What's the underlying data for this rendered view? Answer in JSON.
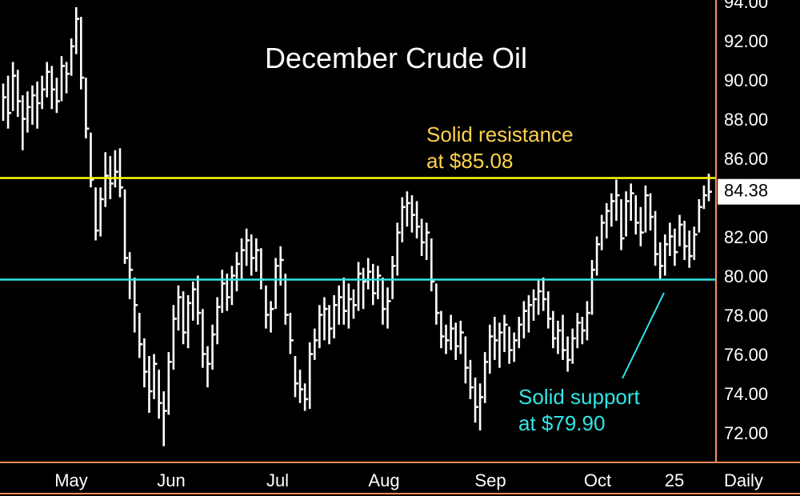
{
  "chart_data": {
    "type": "ohlc",
    "title": "December Crude Oil",
    "timeframe_label": "Daily",
    "y_ticks": [
      "94.00",
      "92.00",
      "90.00",
      "88.00",
      "86.00",
      "84.00",
      "82.00",
      "80.00",
      "78.00",
      "76.00",
      "74.00",
      "72.00"
    ],
    "x_ticks": [
      "May",
      "Jun",
      "Jul",
      "Aug",
      "Sep",
      "Oct",
      "25"
    ],
    "last_price_label": "84.38",
    "ylim": [
      71,
      94.2
    ],
    "grid": false,
    "colors": {
      "background": "#000000",
      "bars": "#ffffff",
      "resistance": "#ffff00",
      "support": "#33e6e6",
      "axis": "#ff8c5a",
      "title": "#ffffff",
      "resistance_text": "#ffd24a"
    },
    "lines": [
      {
        "name": "resistance",
        "value": 85.08,
        "label": [
          "Solid resistance",
          "at $85.08"
        ]
      },
      {
        "name": "support",
        "value": 79.9,
        "label": [
          "Solid support",
          "at $79.90"
        ]
      }
    ],
    "bars": [
      {
        "date": "Apr 24",
        "high": 89.9,
        "low": 88.0,
        "close": 89.2
      },
      {
        "date": "Apr 25",
        "high": 90.3,
        "low": 87.6,
        "close": 88.4
      },
      {
        "date": "Apr 26",
        "high": 91.0,
        "low": 88.5,
        "close": 90.3
      },
      {
        "date": "Apr 27",
        "high": 90.6,
        "low": 88.2,
        "close": 89.0
      },
      {
        "date": "Apr 30",
        "high": 89.3,
        "low": 86.5,
        "close": 88.1
      },
      {
        "date": "May 1",
        "high": 89.5,
        "low": 87.4,
        "close": 88.7
      },
      {
        "date": "May 2",
        "high": 89.8,
        "low": 87.8,
        "close": 89.3
      },
      {
        "date": "May 3",
        "high": 90.0,
        "low": 87.6,
        "close": 88.9
      },
      {
        "date": "May 4",
        "high": 90.3,
        "low": 88.6,
        "close": 89.6
      },
      {
        "date": "May 7",
        "high": 91.0,
        "low": 89.2,
        "close": 90.5
      },
      {
        "date": "May 8",
        "high": 90.8,
        "low": 88.6,
        "close": 89.6
      },
      {
        "date": "May 9",
        "high": 90.2,
        "low": 88.4,
        "close": 89.0
      },
      {
        "date": "May 10",
        "high": 91.3,
        "low": 89.0,
        "close": 90.8
      },
      {
        "date": "May 11",
        "high": 91.0,
        "low": 89.4,
        "close": 90.4
      },
      {
        "date": "May 14",
        "high": 92.2,
        "low": 90.3,
        "close": 91.8
      },
      {
        "date": "May 15",
        "high": 93.8,
        "low": 91.4,
        "close": 93.2
      },
      {
        "date": "May 16",
        "high": 93.3,
        "low": 89.6,
        "close": 90.2
      },
      {
        "date": "May 17",
        "high": 90.2,
        "low": 87.1,
        "close": 87.6
      },
      {
        "date": "May 18",
        "high": 87.4,
        "low": 84.6,
        "close": 85.0
      },
      {
        "date": "May 21",
        "high": 84.6,
        "low": 81.9,
        "close": 82.4
      },
      {
        "date": "May 22",
        "high": 84.6,
        "low": 82.1,
        "close": 84.0
      },
      {
        "date": "May 23",
        "high": 86.4,
        "low": 83.6,
        "close": 85.2
      },
      {
        "date": "May 24",
        "high": 86.2,
        "low": 84.0,
        "close": 84.8
      },
      {
        "date": "May 25",
        "high": 86.5,
        "low": 84.6,
        "close": 85.4
      },
      {
        "date": "May 29",
        "high": 86.6,
        "low": 84.1,
        "close": 84.6
      },
      {
        "date": "May 30",
        "high": 84.5,
        "low": 80.7,
        "close": 81.0
      },
      {
        "date": "May 31",
        "high": 81.3,
        "low": 78.9,
        "close": 80.4
      },
      {
        "date": "Jun 1",
        "high": 80.0,
        "low": 77.2,
        "close": 78.6
      },
      {
        "date": "Jun 4",
        "high": 78.2,
        "low": 75.9,
        "close": 76.6
      },
      {
        "date": "Jun 5",
        "high": 76.9,
        "low": 74.4,
        "close": 75.2
      },
      {
        "date": "Jun 6",
        "high": 76.0,
        "low": 73.1,
        "close": 74.2
      },
      {
        "date": "Jun 7",
        "high": 76.1,
        "low": 73.8,
        "close": 75.6
      },
      {
        "date": "Jun 8",
        "high": 75.3,
        "low": 72.8,
        "close": 73.6
      },
      {
        "date": "Jun 11",
        "high": 74.2,
        "low": 71.4,
        "close": 73.2
      },
      {
        "date": "Jun 12",
        "high": 76.2,
        "low": 73.0,
        "close": 75.7
      },
      {
        "date": "Jun 13",
        "high": 78.6,
        "low": 75.3,
        "close": 77.9
      },
      {
        "date": "Jun 14",
        "high": 79.6,
        "low": 77.3,
        "close": 79.0
      },
      {
        "date": "Jun 15",
        "high": 79.3,
        "low": 76.6,
        "close": 77.2
      },
      {
        "date": "Jun 18",
        "high": 79.1,
        "low": 76.4,
        "close": 78.7
      },
      {
        "date": "Jun 19",
        "high": 79.8,
        "low": 77.8,
        "close": 79.4
      },
      {
        "date": "Jun 20",
        "high": 80.1,
        "low": 77.6,
        "close": 78.2
      },
      {
        "date": "Jun 21",
        "high": 78.4,
        "low": 75.4,
        "close": 76.1
      },
      {
        "date": "Jun 22",
        "high": 76.5,
        "low": 74.4,
        "close": 75.6
      },
      {
        "date": "Jun 25",
        "high": 77.6,
        "low": 75.3,
        "close": 77.1
      },
      {
        "date": "Jun 26",
        "high": 79.0,
        "low": 76.6,
        "close": 78.5
      },
      {
        "date": "Jun 27",
        "high": 80.4,
        "low": 78.2,
        "close": 79.7
      },
      {
        "date": "Jun 28",
        "high": 80.2,
        "low": 78.3,
        "close": 79.0
      },
      {
        "date": "Jun 29",
        "high": 80.6,
        "low": 78.6,
        "close": 80.1
      },
      {
        "date": "Jul 2",
        "high": 81.3,
        "low": 79.3,
        "close": 80.7
      },
      {
        "date": "Jul 3",
        "high": 82.0,
        "low": 79.9,
        "close": 81.4
      },
      {
        "date": "Jul 5",
        "high": 82.5,
        "low": 80.6,
        "close": 81.9
      },
      {
        "date": "Jul 6",
        "high": 82.2,
        "low": 80.1,
        "close": 81.0
      },
      {
        "date": "Jul 9",
        "high": 82.0,
        "low": 80.3,
        "close": 81.4
      },
      {
        "date": "Jul 10",
        "high": 81.5,
        "low": 79.4,
        "close": 79.9
      },
      {
        "date": "Jul 11",
        "high": 79.6,
        "low": 77.4,
        "close": 78.1
      },
      {
        "date": "Jul 12",
        "high": 78.8,
        "low": 77.2,
        "close": 78.4
      },
      {
        "date": "Jul 13",
        "high": 81.0,
        "low": 78.4,
        "close": 80.6
      },
      {
        "date": "Jul 16",
        "high": 81.6,
        "low": 79.6,
        "close": 80.9
      },
      {
        "date": "Jul 17",
        "high": 80.2,
        "low": 77.6,
        "close": 78.1
      },
      {
        "date": "Jul 18",
        "high": 78.2,
        "low": 76.1,
        "close": 76.8
      },
      {
        "date": "Jul 19",
        "high": 76.0,
        "low": 73.9,
        "close": 74.6
      },
      {
        "date": "Jul 20",
        "high": 75.3,
        "low": 73.6,
        "close": 74.3
      },
      {
        "date": "Jul 23",
        "high": 74.6,
        "low": 73.2,
        "close": 73.8
      },
      {
        "date": "Jul 24",
        "high": 76.7,
        "low": 73.3,
        "close": 76.1
      },
      {
        "date": "Jul 25",
        "high": 77.4,
        "low": 75.8,
        "close": 76.8
      },
      {
        "date": "Jul 26",
        "high": 78.6,
        "low": 76.4,
        "close": 78.1
      },
      {
        "date": "Jul 27",
        "high": 79.0,
        "low": 76.8,
        "close": 78.4
      },
      {
        "date": "Jul 30",
        "high": 78.6,
        "low": 76.6,
        "close": 77.4
      },
      {
        "date": "Jul 31",
        "high": 79.1,
        "low": 76.9,
        "close": 78.6
      },
      {
        "date": "Aug 1",
        "high": 79.6,
        "low": 77.6,
        "close": 79.0
      },
      {
        "date": "Aug 2",
        "high": 80.0,
        "low": 77.6,
        "close": 78.3
      },
      {
        "date": "Aug 3",
        "high": 79.7,
        "low": 77.4,
        "close": 78.9
      },
      {
        "date": "Aug 6",
        "high": 79.4,
        "low": 77.9,
        "close": 78.6
      },
      {
        "date": "Aug 7",
        "high": 80.8,
        "low": 78.3,
        "close": 80.2
      },
      {
        "date": "Aug 8",
        "high": 80.5,
        "low": 78.4,
        "close": 79.8
      },
      {
        "date": "Aug 9",
        "high": 81.0,
        "low": 79.4,
        "close": 80.3
      },
      {
        "date": "Aug 10",
        "high": 80.7,
        "low": 78.6,
        "close": 79.2
      },
      {
        "date": "Aug 13",
        "high": 80.6,
        "low": 78.9,
        "close": 80.1
      },
      {
        "date": "Aug 14",
        "high": 80.0,
        "low": 77.6,
        "close": 78.4
      },
      {
        "date": "Aug 15",
        "high": 79.5,
        "low": 77.4,
        "close": 78.8
      },
      {
        "date": "Aug 16",
        "high": 81.1,
        "low": 78.9,
        "close": 80.6
      },
      {
        "date": "Aug 17",
        "high": 82.8,
        "low": 80.1,
        "close": 82.3
      },
      {
        "date": "Aug 20",
        "high": 84.1,
        "low": 81.8,
        "close": 83.6
      },
      {
        "date": "Aug 21",
        "high": 84.4,
        "low": 82.6,
        "close": 83.8
      },
      {
        "date": "Aug 22",
        "high": 84.2,
        "low": 82.3,
        "close": 83.2
      },
      {
        "date": "Aug 23",
        "high": 83.9,
        "low": 82.0,
        "close": 82.6
      },
      {
        "date": "Aug 24",
        "high": 83.0,
        "low": 81.1,
        "close": 81.8
      },
      {
        "date": "Aug 27",
        "high": 82.8,
        "low": 80.9,
        "close": 82.3
      },
      {
        "date": "Aug 28",
        "high": 82.0,
        "low": 79.3,
        "close": 79.8
      },
      {
        "date": "Aug 29",
        "high": 79.7,
        "low": 77.6,
        "close": 78.2
      },
      {
        "date": "Aug 30",
        "high": 78.3,
        "low": 76.4,
        "close": 77.0
      },
      {
        "date": "Aug 31",
        "high": 77.6,
        "low": 76.1,
        "close": 76.8
      },
      {
        "date": "Sep 4",
        "high": 78.1,
        "low": 76.3,
        "close": 77.4
      },
      {
        "date": "Sep 5",
        "high": 77.7,
        "low": 75.8,
        "close": 76.5
      },
      {
        "date": "Sep 6",
        "high": 77.8,
        "low": 76.1,
        "close": 77.2
      },
      {
        "date": "Sep 7",
        "high": 77.0,
        "low": 74.6,
        "close": 75.4
      },
      {
        "date": "Sep 10",
        "high": 75.8,
        "low": 73.8,
        "close": 74.4
      },
      {
        "date": "Sep 11",
        "high": 74.9,
        "low": 72.6,
        "close": 73.4
      },
      {
        "date": "Sep 12",
        "high": 74.6,
        "low": 72.2,
        "close": 73.9
      },
      {
        "date": "Sep 13",
        "high": 76.2,
        "low": 73.6,
        "close": 75.7
      },
      {
        "date": "Sep 14",
        "high": 77.6,
        "low": 75.1,
        "close": 77.0
      },
      {
        "date": "Sep 17",
        "high": 78.0,
        "low": 75.8,
        "close": 76.8
      },
      {
        "date": "Sep 18",
        "high": 77.7,
        "low": 75.4,
        "close": 77.2
      },
      {
        "date": "Sep 19",
        "high": 78.1,
        "low": 76.2,
        "close": 77.6
      },
      {
        "date": "Sep 20",
        "high": 77.5,
        "low": 75.6,
        "close": 76.3
      },
      {
        "date": "Sep 21",
        "high": 77.2,
        "low": 75.7,
        "close": 76.8
      },
      {
        "date": "Sep 24",
        "high": 78.0,
        "low": 76.4,
        "close": 77.6
      },
      {
        "date": "Sep 25",
        "high": 78.8,
        "low": 76.9,
        "close": 78.3
      },
      {
        "date": "Sep 26",
        "high": 79.1,
        "low": 77.2,
        "close": 78.6
      },
      {
        "date": "Sep 27",
        "high": 79.4,
        "low": 77.8,
        "close": 78.9
      },
      {
        "date": "Sep 28",
        "high": 79.9,
        "low": 78.1,
        "close": 79.3
      },
      {
        "date": "Oct 1",
        "high": 80.0,
        "low": 78.3,
        "close": 78.9
      },
      {
        "date": "Oct 2",
        "high": 79.3,
        "low": 77.4,
        "close": 77.9
      },
      {
        "date": "Oct 3",
        "high": 78.3,
        "low": 76.4,
        "close": 76.9
      },
      {
        "date": "Oct 4",
        "high": 77.8,
        "low": 76.1,
        "close": 77.3
      },
      {
        "date": "Oct 5",
        "high": 78.1,
        "low": 75.8,
        "close": 76.3
      },
      {
        "date": "Oct 8",
        "high": 77.0,
        "low": 75.2,
        "close": 75.8
      },
      {
        "date": "Oct 9",
        "high": 77.4,
        "low": 75.6,
        "close": 76.9
      },
      {
        "date": "Oct 10",
        "high": 78.2,
        "low": 76.4,
        "close": 77.7
      },
      {
        "date": "Oct 11",
        "high": 78.0,
        "low": 76.6,
        "close": 77.3
      },
      {
        "date": "Oct 12",
        "high": 78.8,
        "low": 76.8,
        "close": 78.2
      },
      {
        "date": "Oct 15",
        "high": 80.9,
        "low": 78.1,
        "close": 80.4
      },
      {
        "date": "Oct 16",
        "high": 82.1,
        "low": 80.1,
        "close": 81.7
      },
      {
        "date": "Oct 17",
        "high": 83.2,
        "low": 81.4,
        "close": 82.8
      },
      {
        "date": "Oct 18",
        "high": 83.8,
        "low": 82.0,
        "close": 83.4
      },
      {
        "date": "Oct 19",
        "high": 84.3,
        "low": 82.6,
        "close": 83.9
      },
      {
        "date": "Oct 22",
        "high": 85.0,
        "low": 82.9,
        "close": 84.2
      },
      {
        "date": "Oct 23",
        "high": 84.0,
        "low": 81.4,
        "close": 82.0
      },
      {
        "date": "Oct 24",
        "high": 84.4,
        "low": 82.1,
        "close": 83.9
      },
      {
        "date": "Oct 25",
        "high": 84.8,
        "low": 82.9,
        "close": 84.3
      },
      {
        "date": "Oct 26",
        "high": 84.2,
        "low": 82.2,
        "close": 82.8
      },
      {
        "date": "Oct 29",
        "high": 83.6,
        "low": 81.6,
        "close": 82.3
      },
      {
        "date": "Oct 30",
        "high": 84.7,
        "low": 82.3,
        "close": 84.2
      },
      {
        "date": "Oct 31",
        "high": 84.3,
        "low": 82.4,
        "close": 83.1
      },
      {
        "date": "Nov 1",
        "high": 83.4,
        "low": 80.6,
        "close": 81.2
      },
      {
        "date": "Nov 2",
        "high": 81.8,
        "low": 79.9,
        "close": 80.6
      },
      {
        "date": "Nov 5",
        "high": 82.2,
        "low": 80.1,
        "close": 81.7
      },
      {
        "date": "Nov 6",
        "high": 82.8,
        "low": 81.1,
        "close": 82.1
      },
      {
        "date": "Nov 7",
        "high": 82.5,
        "low": 80.6,
        "close": 81.3
      },
      {
        "date": "Nov 8",
        "high": 83.2,
        "low": 81.6,
        "close": 82.7
      },
      {
        "date": "Nov 9",
        "high": 82.9,
        "low": 80.9,
        "close": 81.6
      },
      {
        "date": "Nov 12",
        "high": 82.4,
        "low": 80.5,
        "close": 81.1
      },
      {
        "date": "Nov 13",
        "high": 82.6,
        "low": 80.9,
        "close": 82.2
      },
      {
        "date": "Nov 14",
        "high": 84.0,
        "low": 82.3,
        "close": 83.6
      },
      {
        "date": "Nov 15",
        "high": 84.7,
        "low": 83.5,
        "close": 84.2
      },
      {
        "date": "Nov 16",
        "high": 85.3,
        "low": 83.9,
        "close": 84.38
      }
    ]
  }
}
